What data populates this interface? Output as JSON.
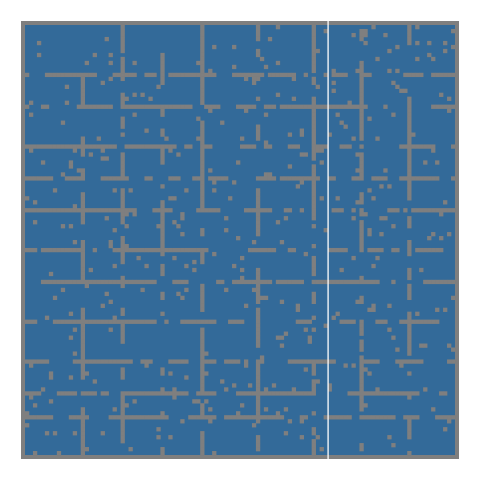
{
  "game": {
    "type": "cellular-grid",
    "grid": {
      "cols": 108,
      "rows": 108
    },
    "colors": {
      "background": "#ffffff",
      "border": "#7f7f7f",
      "fill": "#336a99",
      "wall": "#7f7f7f",
      "divider": "#ffffff"
    },
    "pattern": {
      "horizontal_wall_rows": [
        12,
        20,
        30,
        38,
        46,
        56,
        64,
        74,
        84,
        92,
        98
      ],
      "vertical_wall_cols": [
        14,
        24,
        34,
        44,
        58,
        72,
        84,
        96
      ],
      "divider_col": 76,
      "wall_density": 0.58,
      "speckle_density": 0.035,
      "seed": 1337
    }
  }
}
